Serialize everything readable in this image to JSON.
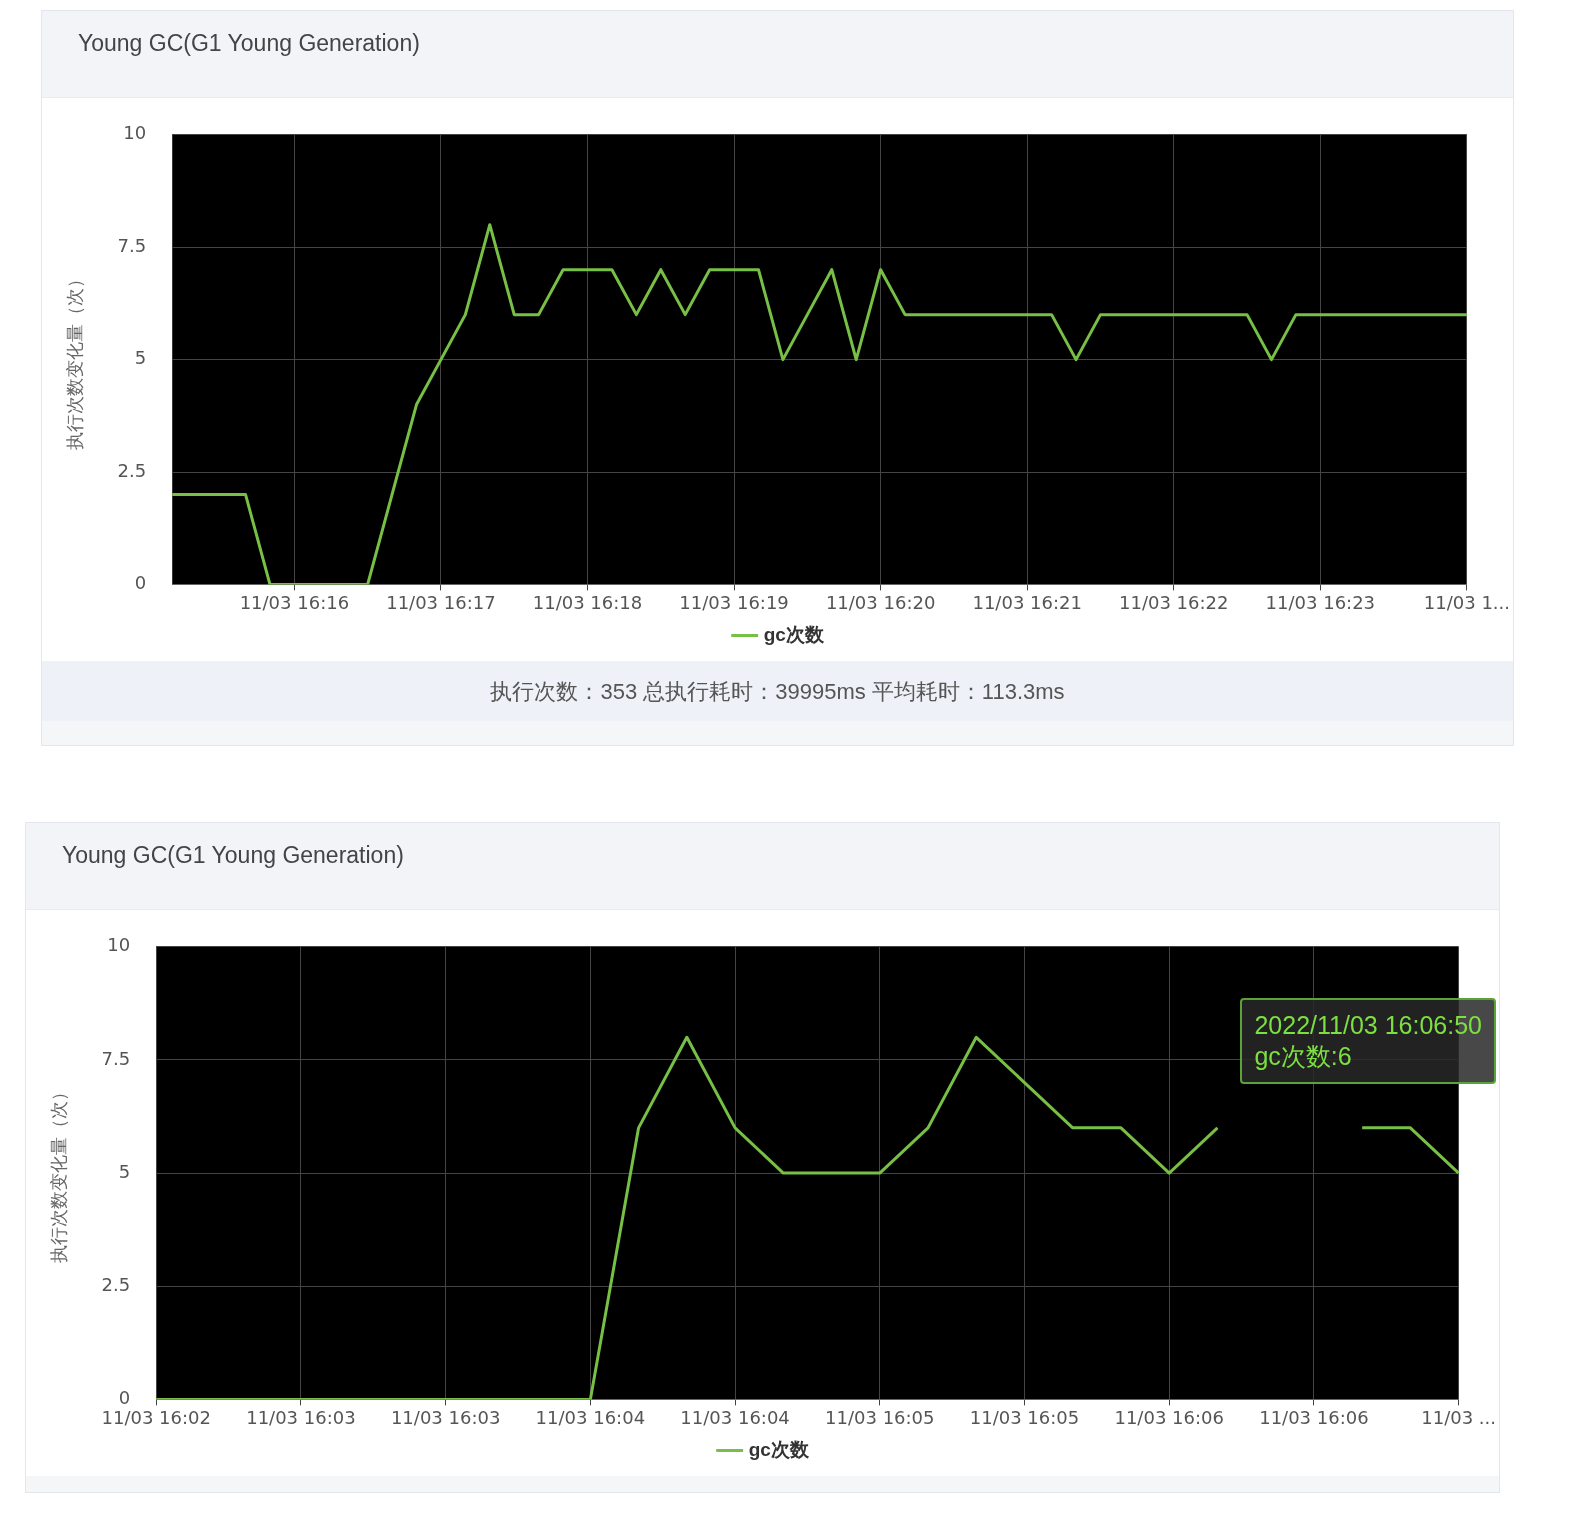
{
  "chart_data": [
    {
      "type": "line",
      "title": "Young GC(G1 Young Generation)",
      "ylabel": "执行次数变化量（次）",
      "categories": [
        null,
        null,
        null,
        null,
        null,
        "11/03 16:16",
        null,
        null,
        null,
        null,
        null,
        "11/03 16:17",
        null,
        null,
        null,
        null,
        null,
        "11/03 16:18",
        null,
        null,
        null,
        null,
        null,
        "11/03 16:19",
        null,
        null,
        null,
        null,
        null,
        "11/03 16:20",
        null,
        null,
        null,
        null,
        null,
        "11/03 16:21",
        null,
        null,
        null,
        null,
        null,
        "11/03 16:22",
        null,
        null,
        null,
        null,
        null,
        "11/03 16:23",
        null,
        null,
        null,
        null,
        null,
        "11/03 1..."
      ],
      "series": [
        {
          "name": "gc次数",
          "color": "#78c045",
          "values": [
            2,
            2,
            2,
            2,
            0,
            0,
            0,
            0,
            0,
            2,
            4,
            5,
            6,
            8,
            6,
            6,
            7,
            7,
            7,
            6,
            7,
            6,
            7,
            7,
            7,
            5,
            6,
            7,
            5,
            7,
            6,
            6,
            6,
            6,
            6,
            6,
            6,
            5,
            6,
            6,
            6,
            6,
            6,
            6,
            6,
            5,
            6,
            6,
            6,
            6,
            6,
            6,
            6,
            6
          ]
        }
      ],
      "ylim": [
        0,
        10
      ],
      "yticks": [
        0,
        2.5,
        5,
        7.5,
        10
      ],
      "grid": true,
      "legend": "bottom",
      "annotations": [
        "执行次数：353 总执行耗时：39995ms 平均耗时：113.3ms"
      ]
    },
    {
      "type": "line",
      "title": "Young GC(G1 Young Generation)",
      "ylabel": "执行次数变化量（次）",
      "categories": [
        "11/03 16:02",
        null,
        null,
        "11/03 16:03",
        null,
        null,
        "11/03 16:03",
        null,
        null,
        "11/03 16:04",
        null,
        null,
        "11/03 16:04",
        null,
        null,
        "11/03 16:05",
        null,
        null,
        "11/03 16:05",
        null,
        null,
        "11/03 16:06",
        null,
        null,
        "11/03 16:06",
        null,
        null,
        "11/03 ..."
      ],
      "series": [
        {
          "name": "gc次数",
          "color": "#78c045",
          "values": [
            0,
            0,
            0,
            0,
            0,
            0,
            0,
            0,
            0,
            0,
            6,
            8,
            6,
            5,
            5,
            5,
            6,
            8,
            7,
            6,
            6,
            5,
            6,
            null,
            null,
            6,
            6,
            5
          ]
        }
      ],
      "ylim": [
        0,
        10
      ],
      "yticks": [
        0,
        2.5,
        5,
        7.5,
        10
      ],
      "grid": true,
      "legend": "bottom",
      "annotations": [
        "2022/11/03 16:06:50",
        "gc次数:6"
      ]
    }
  ]
}
